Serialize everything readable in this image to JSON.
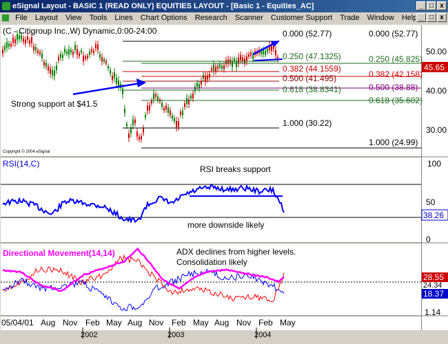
{
  "window": {
    "title": "eSignal Layout - BASIC 1 (READ ONLY) EQUITIES LAYOUT - [Basic 1 - Equities_AC]",
    "controls": [
      "_",
      "□",
      "x"
    ],
    "inner_controls": [
      "_",
      "□",
      "x"
    ]
  },
  "menu": [
    "File",
    "Layout",
    "View",
    "Tools",
    "Lines",
    "Chart Options",
    "Research",
    "Scanner",
    "Customer Support",
    "Trade",
    "Window",
    "Help"
  ],
  "price_panel": {
    "header": "(C - Citigroup Inc.,W) Dynamic,0:00-24:00",
    "copyright": "Copyright © 2004 eSignal",
    "annotation": "Strong support at $41.5",
    "last_price": "45.65",
    "last_price_value": 45.65,
    "axis_labels": [
      "50.00",
      "40.00",
      "30.00"
    ]
  },
  "fib_sets": {
    "upper": [
      {
        "label": "0.000 (52.77)",
        "color": "#000000"
      },
      {
        "label": "0.250 (47.1325)",
        "color": "#1a6b1a"
      },
      {
        "label": "0.382 (44.1559)",
        "color": "#cc0000"
      },
      {
        "label": "0.500 (41.495)",
        "color": "#8b0000"
      },
      {
        "label": "0.618 (38.8341)",
        "color": "#1a6b1a"
      },
      {
        "label": "1.000 (30.22)",
        "color": "#000000"
      }
    ],
    "lower": [
      {
        "label": "0.000 (52.77)",
        "color": "#000000"
      },
      {
        "label": "0.250 (45.825)",
        "color": "#1a6b1a"
      },
      {
        "label": "0.382 (42.158)",
        "color": "#cc0000"
      },
      {
        "label": "0.500 (38.88)",
        "color": "#800080"
      },
      {
        "label": "0.618 (35.602)",
        "color": "#1a6b1a"
      },
      {
        "label": "1.000 (24.99)",
        "color": "#000000"
      }
    ]
  },
  "rsi_panel": {
    "header": "RSI(14,C)",
    "annotation_top": "RSI breaks support",
    "annotation_bottom": "more downside likely",
    "last_value": "38.26",
    "last_value_number": 38.26,
    "axis_labels": [
      "100",
      "50",
      "0"
    ]
  },
  "dm_panel": {
    "header": "Directional Movement(14,14)",
    "annotation_line1": "ADX declines from higher levels.",
    "annotation_line2": "Consolidation likely",
    "values": [
      {
        "label": "28.55",
        "color": "#cc0000"
      },
      {
        "label": "24.34",
        "color": "#000000"
      },
      {
        "label": "18.37",
        "color": "#0000cc"
      }
    ],
    "series_colors": {
      "adx": "#ff00ff",
      "plus_di": "#0000ff",
      "minus_di": "#ff0000"
    }
  },
  "date_axis": {
    "start": "05/04/01",
    "months": [
      "Aug",
      "Nov",
      "Feb",
      "May",
      "Aug",
      "Nov",
      "Feb",
      "May",
      "Aug",
      "Nov",
      "Feb",
      "May"
    ],
    "years": [
      "2002",
      "2003",
      "2004"
    ],
    "corner": "1.14"
  },
  "colors": {
    "rsi_line": "#0000ff",
    "annotation_arrow": "#0000ff",
    "window_bg": "#d4d0c8"
  }
}
